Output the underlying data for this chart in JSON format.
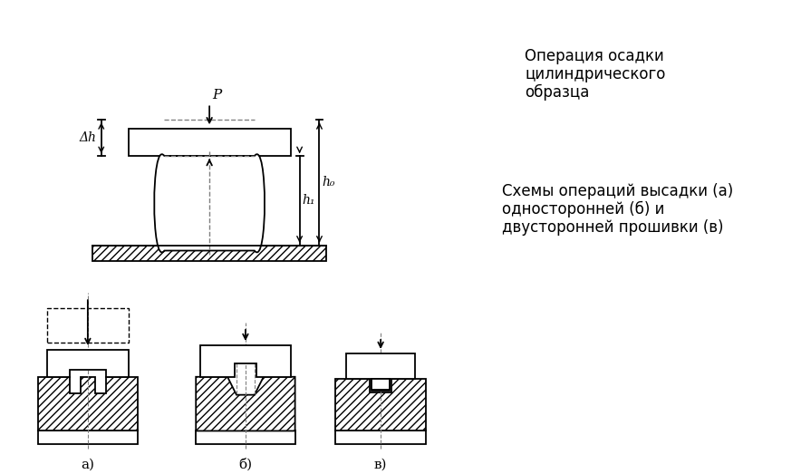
{
  "title": "",
  "text_top_right_1": "Операция осадки",
  "text_top_right_2": "цилиндрического",
  "text_top_right_3": "образца",
  "text_bottom_right_1": "Схемы операций высадки (а)",
  "text_bottom_right_2": "односторонней (б) и",
  "text_bottom_right_3": "двусторонней прошивки (в)",
  "label_a": "а)",
  "label_b": "б)",
  "label_v": "в)",
  "label_P": "P",
  "label_dh": "Δh",
  "label_h1": "h₁",
  "label_h0": "h₀",
  "bg_color": "#ffffff",
  "line_color": "#000000",
  "hatch_color": "#000000",
  "hatch_pattern": "////",
  "dashed_line_style": "--",
  "font_size_labels": 11,
  "font_size_annotations": 10.5
}
